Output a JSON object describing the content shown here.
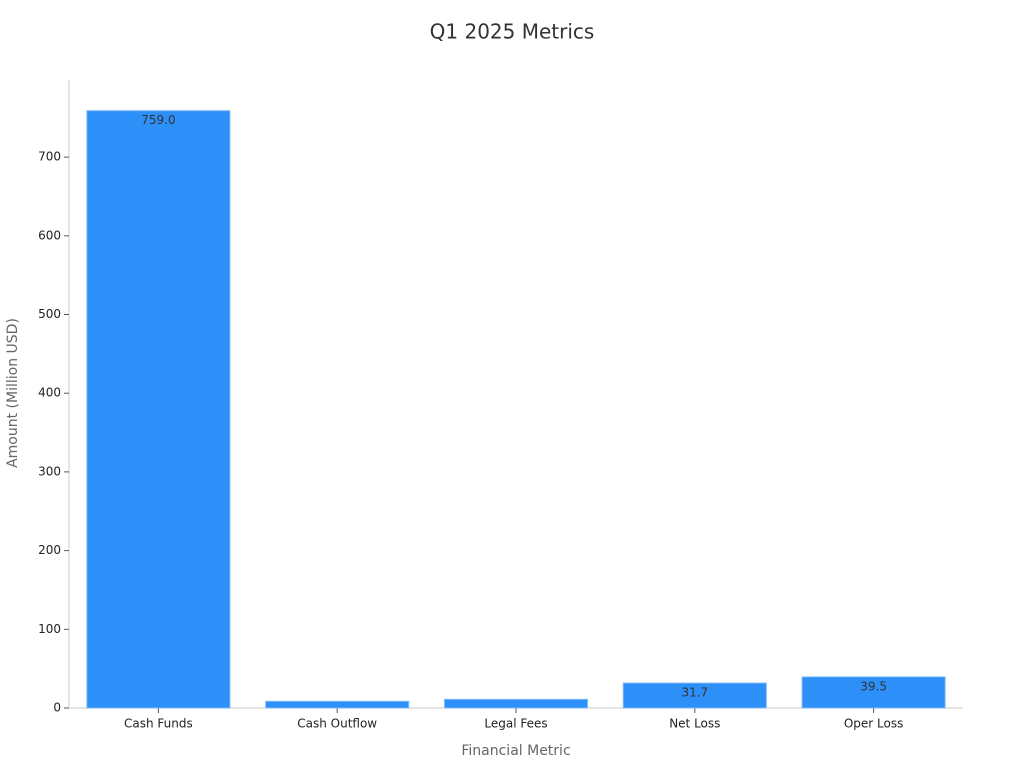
{
  "chart_data": {
    "type": "bar",
    "title": "Q1 2025 Metrics",
    "x_label": "Financial Metric",
    "y_label": "Amount (Million USD)",
    "categories": [
      "Cash Funds",
      "Cash Outflow",
      "Legal Fees",
      "Net Loss",
      "Oper Loss"
    ],
    "values": [
      759.0,
      8.5,
      11,
      31.7,
      39.5
    ],
    "value_labels": [
      "759.0",
      null,
      null,
      "31.7",
      "39.5"
    ],
    "color": "#2d8ff8",
    "ylim": [
      0,
      798
    ],
    "yticks": [
      0,
      100,
      200,
      300,
      400,
      500,
      600,
      700
    ],
    "grid": false
  }
}
